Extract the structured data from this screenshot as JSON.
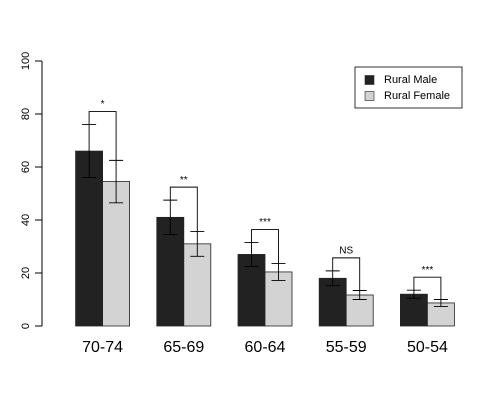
{
  "chart_data": {
    "type": "bar",
    "categories": [
      "70-74",
      "65-69",
      "60-64",
      "55-59",
      "50-54"
    ],
    "series": [
      {
        "name": "Rural Male",
        "color": "#222222",
        "values": [
          66,
          41,
          27,
          18,
          12
        ],
        "errors": [
          10,
          6.5,
          4.5,
          2.8,
          1.5
        ]
      },
      {
        "name": "Rural Female",
        "color": "#d3d3d3",
        "values": [
          54.5,
          31,
          20.4,
          11.7,
          8.7
        ],
        "errors": [
          8,
          4.7,
          3.2,
          1.7,
          1.3
        ]
      }
    ],
    "annotations": [
      "*",
      "**",
      "***",
      "NS",
      "***"
    ],
    "ylim": [
      0,
      100
    ],
    "yticks": [
      0,
      20,
      40,
      60,
      80,
      100
    ],
    "grid": false,
    "legend": "top-right"
  }
}
